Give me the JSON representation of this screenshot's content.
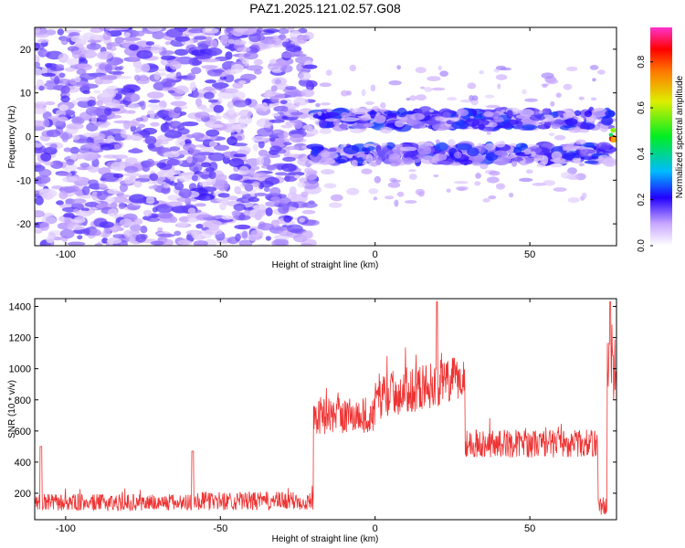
{
  "title": "PAZ1.2025.121.02.57.G08",
  "chart_data": [
    {
      "type": "heatmap",
      "name": "spectrogram",
      "xlabel": "Height of straight line (km)",
      "ylabel": "Frequency (Hz)",
      "xlim": [
        -110,
        78
      ],
      "ylim": [
        -25,
        25
      ],
      "xticks": [
        -100,
        -50,
        0,
        50
      ],
      "xtick_labels": [
        "-100",
        "-50",
        "0",
        "50"
      ],
      "yticks": [
        -20,
        -10,
        0,
        10,
        20
      ],
      "ytick_labels": [
        "-20",
        "-10",
        "0",
        "10",
        "20"
      ],
      "description_regions": [
        {
          "x_range": [
            -110,
            -20
          ],
          "freq_range": [
            -25,
            25
          ],
          "amplitude": 0.15,
          "pattern": "diffuse noise"
        },
        {
          "x_range": [
            -20,
            76
          ],
          "freq_range": [
            2,
            6
          ],
          "amplitude": 0.2,
          "pattern": "band"
        },
        {
          "x_range": [
            -20,
            76
          ],
          "freq_range": [
            -6,
            -2
          ],
          "amplitude": 0.2,
          "pattern": "band"
        },
        {
          "x_range": [
            76,
            78
          ],
          "freq_range": [
            -1,
            2
          ],
          "amplitude": 0.9,
          "pattern": "peak"
        }
      ],
      "colorbar": {
        "label": "Normalized spectral amplitude",
        "range": [
          0,
          0.95
        ],
        "ticks": [
          0.0,
          0.2,
          0.4,
          0.6,
          0.8
        ],
        "tick_labels": [
          "0.0",
          "0.2",
          "0.4",
          "0.6",
          "0.8"
        ]
      }
    },
    {
      "type": "line",
      "name": "snr",
      "xlabel": "Height of straight line (km)",
      "ylabel": "SNR (10 * v/v)",
      "xlim": [
        -110,
        78
      ],
      "ylim": [
        30,
        1450
      ],
      "xticks": [
        -100,
        -50,
        0,
        50
      ],
      "xtick_labels": [
        "-100",
        "-50",
        "0",
        "50"
      ],
      "yticks": [
        200,
        400,
        600,
        800,
        1000,
        1200,
        1400
      ],
      "ytick_labels": [
        "200",
        "400",
        "600",
        "800",
        "1000",
        "1200",
        "1400"
      ],
      "color": "#ee3333",
      "segments": [
        {
          "x_range": [
            -110,
            -60
          ],
          "mean": 140,
          "spread": 55
        },
        {
          "x_range": [
            -60,
            -20
          ],
          "mean": 150,
          "spread": 60
        },
        {
          "x_range": [
            -20,
            0
          ],
          "mean": 700,
          "spread": 120
        },
        {
          "x_range": [
            0,
            29
          ],
          "mean": 820,
          "spread": 150
        },
        {
          "x_range": [
            29,
            72
          ],
          "mean": 520,
          "spread": 90
        },
        {
          "x_range": [
            72,
            75
          ],
          "mean": 120,
          "spread": 60
        },
        {
          "x_range": [
            75,
            78
          ],
          "mean": 1000,
          "spread": 200
        }
      ],
      "peak_value": 1430
    }
  ]
}
